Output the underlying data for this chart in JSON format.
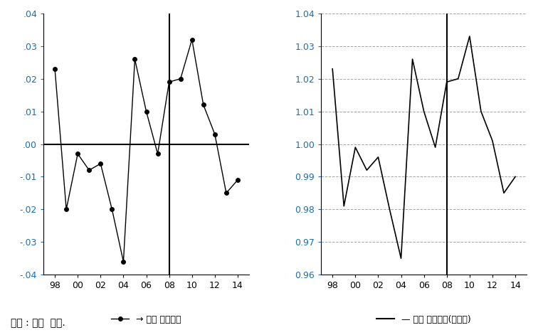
{
  "years": [
    98,
    99,
    100,
    101,
    102,
    103,
    104,
    105,
    106,
    107,
    108,
    109,
    110,
    111,
    112,
    113,
    114
  ],
  "x_labels": [
    "98",
    "00",
    "02",
    "04",
    "06",
    "08",
    "10",
    "12",
    "14"
  ],
  "x_ticks": [
    98,
    100,
    102,
    104,
    106,
    108,
    110,
    112,
    114
  ],
  "left_values": [
    0.023,
    -0.02,
    -0.003,
    -0.008,
    -0.006,
    -0.02,
    -0.036,
    0.026,
    0.01,
    -0.003,
    0.019,
    0.02,
    0.032,
    0.012,
    0.003,
    -0.015,
    -0.011
  ],
  "right_values": [
    1.023,
    0.981,
    0.999,
    0.992,
    0.996,
    0.98,
    0.965,
    1.026,
    1.01,
    0.999,
    1.019,
    1.02,
    1.033,
    1.01,
    1.001,
    0.985,
    0.99
  ],
  "left_ylim": [
    -0.04,
    0.04
  ],
  "right_ylim": [
    0.96,
    1.04
  ],
  "left_yticks": [
    -0.04,
    -0.03,
    -0.02,
    -0.01,
    0.0,
    0.01,
    0.02,
    0.03,
    0.04
  ],
  "right_yticks": [
    0.96,
    0.97,
    0.98,
    0.99,
    1.0,
    1.01,
    1.02,
    1.03,
    1.04
  ],
  "vline_x": 108,
  "left_legend": "→ 해외 아웃소싱",
  "right_legend": "— 해외 아웃소싱(승산비)",
  "caption": "자료 : 필자  작성.",
  "line_color": "black",
  "marker": "o",
  "marker_size": 4
}
